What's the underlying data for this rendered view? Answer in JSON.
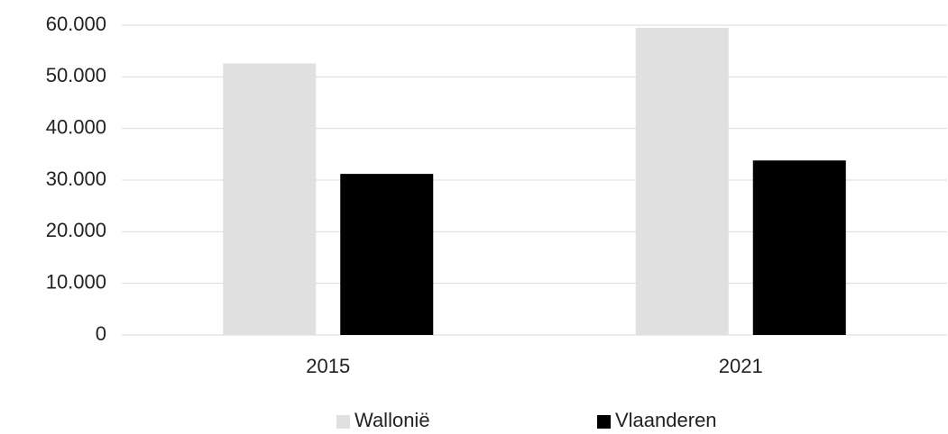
{
  "chart_data": {
    "type": "bar",
    "categories": [
      "2015",
      "2021"
    ],
    "series": [
      {
        "name": "Wallonië",
        "color": "#e0e0e0",
        "values": [
          52600,
          59500
        ]
      },
      {
        "name": "Vlaanderen",
        "color": "#000000",
        "values": [
          31200,
          33800
        ]
      }
    ],
    "ylim": [
      0,
      60000
    ],
    "yticks": [
      0,
      {
        "value": 10000,
        "label": "10.000"
      },
      {
        "value": 20000,
        "label": "20.000"
      },
      {
        "value": 30000,
        "label": "30.000"
      },
      {
        "value": 40000,
        "label": "40.000"
      },
      {
        "value": 50000,
        "label": "50.000"
      },
      {
        "value": 60000,
        "label": "60.000"
      }
    ],
    "grid": true,
    "legend": "bottom"
  }
}
